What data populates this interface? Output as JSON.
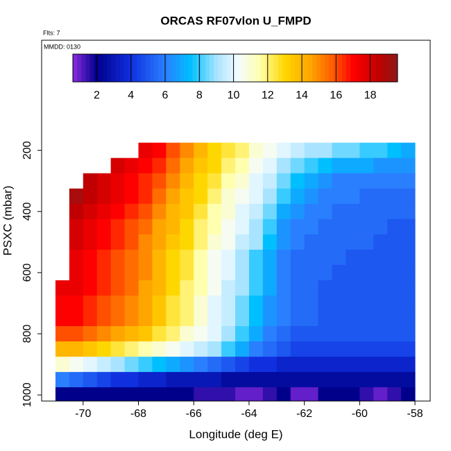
{
  "chart_data": {
    "type": "heatmap",
    "title": "ORCAS RF07vlon U_FMPD",
    "subtitle": "Flts: 7",
    "annotation": "MMDD: 0130",
    "x_label": "Longitude (deg E)",
    "y_label": "PSXC (mbar)",
    "xlim": [
      -71.5,
      -57.45
    ],
    "xticks": [
      -70,
      -68,
      -66,
      -64,
      -62,
      -60,
      -58
    ],
    "ylim": [
      1020,
      -160
    ],
    "yticks": [
      200,
      400,
      600,
      800,
      1000
    ],
    "clim": [
      0.6,
      19.6
    ],
    "cticks": [
      2,
      4,
      6,
      8,
      10,
      12,
      14,
      16,
      18
    ],
    "colorscale": [
      [
        0.6,
        "#8a2be2"
      ],
      [
        2,
        "#00008b"
      ],
      [
        4,
        "#1030e0"
      ],
      [
        6,
        "#2a7fff"
      ],
      [
        7.5,
        "#00bfff"
      ],
      [
        9,
        "#a8e4ff"
      ],
      [
        10.3,
        "#f4fbff"
      ],
      [
        11.5,
        "#ffffb0"
      ],
      [
        13,
        "#ffd700"
      ],
      [
        14.5,
        "#ffa500"
      ],
      [
        16,
        "#ff5000"
      ],
      [
        17,
        "#ff0000"
      ],
      [
        18.5,
        "#c00000"
      ],
      [
        19.6,
        "#8b1a1a"
      ]
    ],
    "x_bins": [
      -71,
      -70.5,
      -70,
      -69.5,
      -69,
      -68.5,
      -68,
      -67.5,
      -67,
      -66.5,
      -66,
      -65.5,
      -65,
      -64.5,
      -64,
      -63.5,
      -63,
      -62.5,
      -62,
      -61.5,
      -61,
      -60.5,
      -60,
      -59.5,
      -59,
      -58.5,
      -58
    ],
    "y_bins": [
      175,
      225,
      275,
      325,
      375,
      425,
      475,
      525,
      575,
      625,
      675,
      725,
      775,
      825,
      875,
      925,
      975,
      1025
    ],
    "values": [
      [
        null,
        null,
        null,
        null,
        null,
        null,
        17.5,
        17,
        16,
        15,
        14,
        13,
        12.5,
        12,
        11,
        10.5,
        10,
        9.5,
        9,
        9,
        8.5,
        8.5,
        8,
        8,
        7.5,
        7
      ],
      [
        null,
        null,
        null,
        null,
        18,
        17.5,
        17,
        16.5,
        15.5,
        14.5,
        13.5,
        13,
        12,
        11.5,
        10.5,
        10,
        9,
        8.5,
        8,
        7.5,
        7,
        7,
        7,
        6.5,
        6.5,
        6.5
      ],
      [
        null,
        null,
        18.5,
        18,
        17.5,
        17,
        16.5,
        16,
        15,
        14,
        13,
        12.5,
        11.5,
        11,
        10,
        9.5,
        8.5,
        7.5,
        7,
        6.5,
        6,
        6,
        6,
        6,
        6,
        6
      ],
      [
        null,
        19,
        18.5,
        18,
        17.5,
        17,
        16.5,
        15.5,
        14.5,
        13.5,
        13,
        12,
        11,
        10.5,
        10,
        9,
        8,
        7,
        6.5,
        6,
        6,
        6,
        5.5,
        5.5,
        5.5,
        5.5
      ],
      [
        null,
        18.5,
        18,
        17.5,
        17,
        16.5,
        16,
        15,
        14,
        13.5,
        12.5,
        11.5,
        11,
        10,
        9.5,
        8.5,
        7,
        6.5,
        6,
        6,
        5.5,
        5.5,
        5.5,
        5.5,
        5.5,
        5.5
      ],
      [
        null,
        18,
        17.5,
        17,
        16.5,
        16,
        15.5,
        14.5,
        14,
        13,
        12,
        11.5,
        10.5,
        10,
        9,
        8,
        6.5,
        6,
        6,
        5.5,
        5.5,
        5.5,
        5.5,
        5.5,
        5,
        5
      ],
      [
        null,
        18,
        17.5,
        17,
        16.5,
        16,
        15,
        14.5,
        13.5,
        13,
        12,
        11,
        10.5,
        9.5,
        9,
        7.5,
        6.5,
        6,
        5.5,
        5.5,
        5.5,
        5.5,
        5.5,
        5,
        5,
        5
      ],
      [
        null,
        17.5,
        17,
        16.5,
        16,
        15.5,
        15,
        14,
        13,
        12.5,
        11.5,
        10.5,
        10,
        9,
        8,
        7,
        6,
        5.5,
        5.5,
        5.5,
        5.5,
        5,
        5,
        5,
        5,
        5
      ],
      [
        null,
        17.5,
        17,
        16.5,
        16,
        15.5,
        15,
        14,
        13,
        12.5,
        11.5,
        10.5,
        10,
        9,
        8,
        7,
        6,
        5.5,
        5.5,
        5.5,
        5,
        5,
        5,
        5,
        5,
        5
      ],
      [
        17.5,
        17.5,
        17,
        16.5,
        16,
        15.5,
        14.5,
        14,
        13,
        12,
        11.5,
        10.5,
        9.5,
        9,
        8,
        7,
        6,
        5.5,
        5.5,
        5,
        5,
        5,
        5,
        5,
        5,
        5
      ],
      [
        17,
        17,
        16.5,
        16,
        15.5,
        15,
        14.5,
        13.5,
        12.5,
        12,
        11,
        10,
        9.5,
        8.5,
        7.5,
        6.5,
        6,
        5.5,
        5.5,
        5,
        5,
        5,
        5,
        5,
        5,
        5
      ],
      [
        17,
        17,
        16.5,
        16,
        15.5,
        15,
        14.5,
        13.5,
        12.5,
        12,
        11,
        10,
        9.5,
        8.5,
        7.5,
        6.5,
        6,
        5.5,
        5.5,
        5,
        5,
        5,
        5,
        5,
        5,
        5
      ],
      [
        16,
        16,
        15.5,
        15,
        14.5,
        14,
        13.5,
        12.5,
        12,
        11,
        10.5,
        10,
        9,
        8,
        7,
        6,
        5.5,
        5,
        5,
        5,
        5,
        5,
        5,
        5,
        5,
        5
      ],
      [
        14,
        14,
        13.5,
        13,
        12.5,
        12,
        11.5,
        11,
        10.5,
        10,
        9.5,
        9,
        8,
        7,
        6,
        5.5,
        5,
        4.5,
        4.5,
        4.5,
        4.5,
        4.5,
        4.5,
        4.5,
        4.5,
        4.5
      ],
      [
        11,
        10.5,
        10,
        9.5,
        9,
        8.5,
        8,
        7.5,
        7,
        6.5,
        6,
        5.5,
        5,
        4.5,
        4,
        4,
        3.5,
        3.5,
        3.5,
        3.5,
        3.5,
        3.5,
        3.5,
        3.5,
        3.5,
        3.5
      ],
      [
        6,
        5.5,
        5,
        4.5,
        4,
        4,
        3.5,
        3.5,
        3,
        3,
        3,
        3,
        2.5,
        2.5,
        2.5,
        2.5,
        2.5,
        2.5,
        2.5,
        2.5,
        2.5,
        2.5,
        2.5,
        2.5,
        2.5,
        2.5
      ],
      [
        2,
        2,
        2,
        2,
        2,
        2,
        2,
        2,
        2,
        2,
        1.5,
        1.5,
        1.5,
        1,
        1,
        1.5,
        2,
        1,
        1,
        2,
        2,
        2,
        1.5,
        1,
        1.5,
        2
      ]
    ]
  }
}
